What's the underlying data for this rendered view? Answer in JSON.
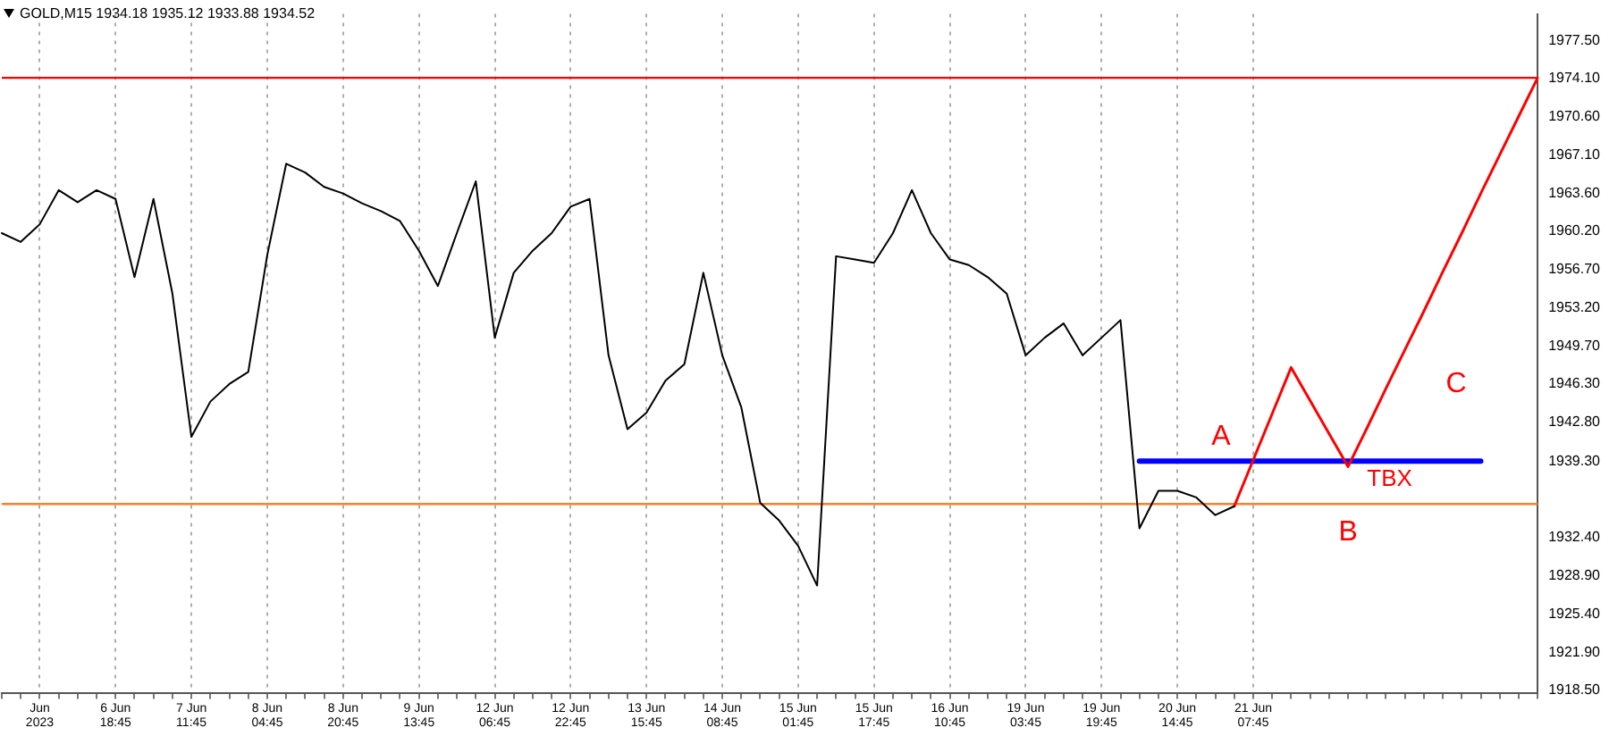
{
  "chart_data": {
    "type": "line",
    "title": "GOLD,M15  1934.18 1935.12 1933.88 1934.52",
    "categories": [
      null,
      null,
      "Jun 2023",
      null,
      null,
      null,
      "6 Jun 18:45",
      null,
      null,
      null,
      "7 Jun 11:45",
      null,
      null,
      null,
      "8 Jun 04:45",
      null,
      null,
      null,
      "8 Jun 20:45",
      null,
      null,
      null,
      "9 Jun 13:45",
      null,
      null,
      null,
      "12 Jun 06:45",
      null,
      null,
      null,
      "12 Jun 22:45",
      null,
      null,
      null,
      "13 Jun 15:45",
      null,
      null,
      null,
      "14 Jun 08:45",
      null,
      null,
      null,
      "15 Jun 01:45",
      null,
      null,
      null,
      "15 Jun 17:45",
      null,
      null,
      null,
      "16 Jun 10:45",
      null,
      null,
      null,
      "19 Jun 03:45",
      null,
      null,
      null,
      "19 Jun 19:45",
      null,
      null,
      null,
      "20 Jun 14:45",
      null,
      null,
      null,
      "21 Jun 07:45",
      null,
      null,
      null,
      null,
      null,
      null,
      null,
      null,
      null,
      null,
      null,
      null,
      null,
      null,
      null
    ],
    "series": [
      {
        "color": "#000000",
        "values": [
          1960.0,
          1959.2,
          1960.8,
          1963.9,
          1962.8,
          1963.9,
          1963.1,
          1956.0,
          1963.1,
          1954.5,
          1941.5,
          1944.7,
          1946.3,
          1947.4,
          1958.0,
          1966.3,
          1965.5,
          1964.2,
          1963.6,
          1962.7,
          1962.0,
          1961.1,
          1958.4,
          1955.2,
          1960.0,
          1964.7,
          1950.5,
          1956.4,
          1958.4,
          1960.0,
          1962.4,
          1963.1,
          1948.9,
          1942.2,
          1943.7,
          1946.6,
          1948.1,
          1956.4,
          1948.9,
          1944.2,
          1935.5,
          1933.9,
          1931.6,
          1928.0,
          1957.9,
          1957.6,
          1957.3,
          1960.0,
          1963.9,
          1960.0,
          1957.6,
          1957.1,
          1956.0,
          1954.5,
          1948.9,
          1950.5,
          1951.8,
          1948.9,
          1950.5,
          1952.1,
          1933.2,
          1936.6,
          1936.6,
          1936.0,
          1934.4,
          1935.2,
          null,
          null,
          null,
          null,
          null,
          null,
          null,
          null,
          null,
          null,
          null,
          null,
          null,
          null,
          null,
          null
        ]
      },
      {
        "color": "#ff0000",
        "values": [
          null,
          null,
          null,
          null,
          null,
          null,
          null,
          null,
          null,
          null,
          null,
          null,
          null,
          null,
          null,
          null,
          null,
          null,
          null,
          null,
          null,
          null,
          null,
          null,
          null,
          null,
          null,
          null,
          null,
          null,
          null,
          null,
          null,
          null,
          null,
          null,
          null,
          null,
          null,
          null,
          null,
          null,
          null,
          null,
          null,
          null,
          null,
          null,
          null,
          null,
          null,
          null,
          null,
          null,
          null,
          null,
          null,
          null,
          null,
          null,
          null,
          null,
          null,
          null,
          null,
          1935.2,
          1939.4,
          1943.6,
          1947.8,
          1944.8,
          1941.8,
          1938.8,
          1942.3,
          1945.9,
          1949.4,
          1952.9,
          1956.5,
          1960.0,
          1963.6,
          1967.1,
          1970.6,
          1974.1
        ]
      },
      {
        "name": "TBX",
        "color": "#0000ff",
        "values": [
          null,
          null,
          null,
          null,
          null,
          null,
          null,
          null,
          null,
          null,
          null,
          null,
          null,
          null,
          null,
          null,
          null,
          null,
          null,
          null,
          null,
          null,
          null,
          null,
          null,
          null,
          null,
          null,
          null,
          null,
          null,
          null,
          null,
          null,
          null,
          null,
          null,
          null,
          null,
          null,
          null,
          null,
          null,
          null,
          null,
          null,
          null,
          null,
          null,
          null,
          null,
          null,
          null,
          null,
          null,
          null,
          null,
          null,
          null,
          null,
          1939.3,
          1939.3,
          1939.3,
          1939.3,
          1939.3,
          1939.3,
          1939.3,
          1939.3,
          1939.3,
          1939.3,
          1939.3,
          1939.3,
          1939.3,
          1939.3,
          1939.3,
          1939.3,
          1939.3,
          1939.3,
          1939.3,
          null,
          null,
          null
        ]
      }
    ],
    "ylim": [
      1918.2,
      1979.9
    ],
    "yticks": [
      {
        "value": 1918.5,
        "label": "1918.50"
      },
      {
        "value": 1921.9,
        "label": "1921.90"
      },
      {
        "value": 1925.4,
        "label": "1925.40"
      },
      {
        "value": 1928.9,
        "label": "1928.90"
      },
      {
        "value": 1932.4,
        "label": "1932.40"
      },
      {
        "value": 1939.3,
        "label": "1939.30"
      },
      {
        "value": 1942.8,
        "label": "1942.80"
      },
      {
        "value": 1946.3,
        "label": "1946.30"
      },
      {
        "value": 1949.7,
        "label": "1949.70"
      },
      {
        "value": 1953.2,
        "label": "1953.20"
      },
      {
        "value": 1956.7,
        "label": "1956.70"
      },
      {
        "value": 1960.2,
        "label": "1960.20"
      },
      {
        "value": 1963.6,
        "label": "1963.60"
      },
      {
        "value": 1967.1,
        "label": "1967.10"
      },
      {
        "value": 1970.6,
        "label": "1970.60"
      },
      {
        "value": 1974.1,
        "label": "1974.10"
      },
      {
        "value": 1977.5,
        "label": "1977.50"
      }
    ],
    "ref_lines": [
      {
        "axis": "y",
        "value": 1974.1,
        "color": "#ff0000"
      },
      {
        "axis": "y",
        "value": 1935.4,
        "color": "#ff7f27"
      }
    ],
    "annotations": [
      "A",
      "B",
      "C"
    ],
    "grid": "x",
    "legend": false,
    "marker": "none",
    "line_style": "solid"
  }
}
